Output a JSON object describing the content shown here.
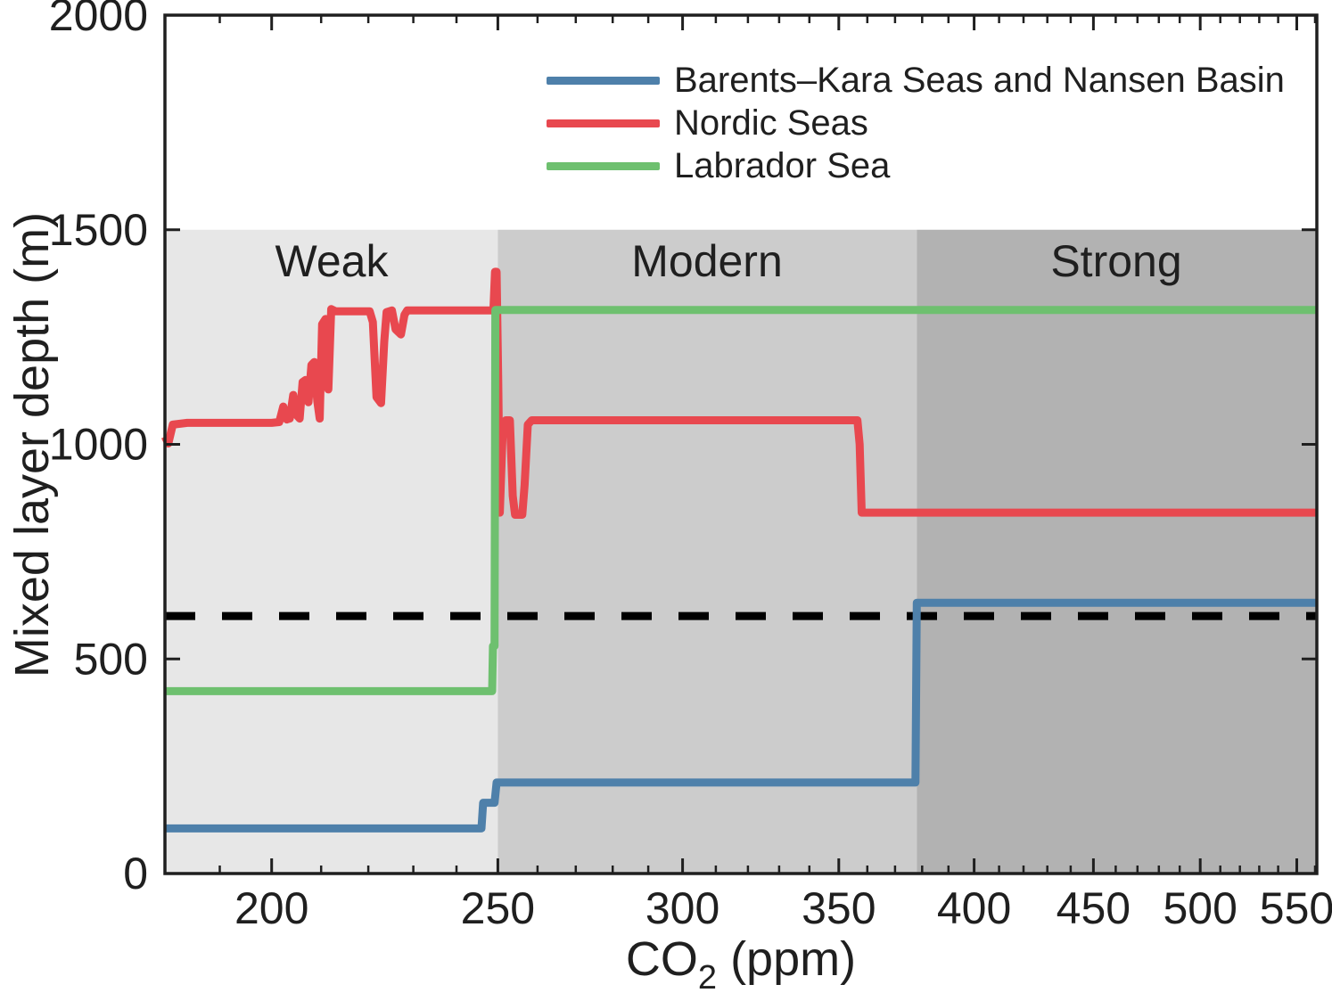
{
  "chart_data": {
    "type": "line",
    "title": "",
    "xlabel_main": "CO",
    "xlabel_sub": "2",
    "xlabel_unit": " (ppm)",
    "ylabel": "Mixed layer depth (m)",
    "xscale": "log",
    "xlim": [
      180,
      561
    ],
    "ylim": [
      0,
      2000
    ],
    "grid": false,
    "legend_position": "top-inside",
    "x_major_ticks": [
      200,
      250,
      300,
      350,
      400,
      450,
      500,
      550
    ],
    "x_minor_ticks": [
      190,
      210,
      220,
      230,
      240,
      260,
      270,
      280,
      290,
      310,
      320,
      330,
      340,
      360,
      370,
      380,
      390,
      410,
      420,
      430,
      440,
      460,
      470,
      480,
      490,
      510,
      520,
      530,
      540,
      560
    ],
    "y_major_ticks": [
      0,
      500,
      1000,
      1500,
      2000
    ],
    "band_top_m": 1500,
    "bands": [
      {
        "label": "Weak",
        "from": 180,
        "to": 250,
        "color": "#e7e7e7"
      },
      {
        "label": "Modern",
        "from": 250,
        "to": 378,
        "color": "#cccccc"
      },
      {
        "label": "Strong",
        "from": 378,
        "to": 561,
        "color": "#b2b2b2"
      }
    ],
    "reference_line": {
      "value": 600,
      "style": "dashed",
      "color": "#000000"
    },
    "series": [
      {
        "name": "Barents–Kara Seas and Nansen Basin",
        "color": "#4e80aa",
        "points": [
          [
            180,
            105
          ],
          [
            246,
            105
          ],
          [
            246.4,
            165
          ],
          [
            249.2,
            165
          ],
          [
            249.7,
            212
          ],
          [
            377.5,
            212
          ],
          [
            378,
            631
          ],
          [
            561,
            631
          ]
        ]
      },
      {
        "name": "Nordic Seas",
        "color": "#e8484f",
        "points": [
          [
            180,
            1018
          ],
          [
            180.6,
            1002
          ],
          [
            181.4,
            1046
          ],
          [
            184,
            1050
          ],
          [
            200,
            1050
          ],
          [
            201.5,
            1052
          ],
          [
            202.3,
            1088
          ],
          [
            203,
            1058
          ],
          [
            203.6,
            1060
          ],
          [
            204.3,
            1115
          ],
          [
            205,
            1068
          ],
          [
            205.6,
            1060
          ],
          [
            206.2,
            1145
          ],
          [
            206.8,
            1150
          ],
          [
            207.4,
            1098
          ],
          [
            208,
            1185
          ],
          [
            208.6,
            1192
          ],
          [
            209.2,
            1100
          ],
          [
            209.7,
            1060
          ],
          [
            210.2,
            1280
          ],
          [
            210.9,
            1292
          ],
          [
            211.5,
            1128
          ],
          [
            212.1,
            1315
          ],
          [
            213,
            1310
          ],
          [
            220.3,
            1310
          ],
          [
            221,
            1285
          ],
          [
            221.8,
            1110
          ],
          [
            222.8,
            1096
          ],
          [
            223.5,
            1240
          ],
          [
            224,
            1308
          ],
          [
            225.2,
            1312
          ],
          [
            226,
            1268
          ],
          [
            227.2,
            1256
          ],
          [
            228,
            1302
          ],
          [
            228.6,
            1312
          ],
          [
            248.9,
            1312
          ],
          [
            249.3,
            1402
          ],
          [
            249.7,
            1402
          ],
          [
            250.1,
            1150
          ],
          [
            250.5,
            841
          ],
          [
            251.2,
            1028
          ],
          [
            252,
            1056
          ],
          [
            253,
            1056
          ],
          [
            253.7,
            880
          ],
          [
            254.3,
            836
          ],
          [
            256.1,
            836
          ],
          [
            256.7,
            905
          ],
          [
            257.5,
            1046
          ],
          [
            258.5,
            1056
          ],
          [
            356.5,
            1056
          ],
          [
            357.3,
            1000
          ],
          [
            358,
            841
          ],
          [
            561,
            841
          ]
        ]
      },
      {
        "name": "Labrador Sea",
        "color": "#6ec06f",
        "points": [
          [
            180,
            425
          ],
          [
            248.6,
            425
          ],
          [
            248.8,
            530
          ],
          [
            249.2,
            530
          ],
          [
            249.4,
            1313
          ],
          [
            561,
            1313
          ]
        ]
      }
    ]
  }
}
